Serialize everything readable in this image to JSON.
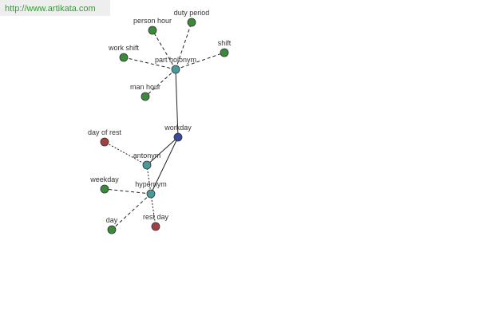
{
  "watermark": "http://www.artikata.com",
  "nodes": [
    {
      "label": "workday"
    },
    {
      "label": "part holonym"
    },
    {
      "label": "antonym"
    },
    {
      "label": "hypernym"
    },
    {
      "label": "person hour"
    },
    {
      "label": "duty period"
    },
    {
      "label": "work shift"
    },
    {
      "label": "shift"
    },
    {
      "label": "man hour"
    },
    {
      "label": "day of rest"
    },
    {
      "label": "weekday"
    },
    {
      "label": "day"
    },
    {
      "label": "rest day"
    }
  ]
}
